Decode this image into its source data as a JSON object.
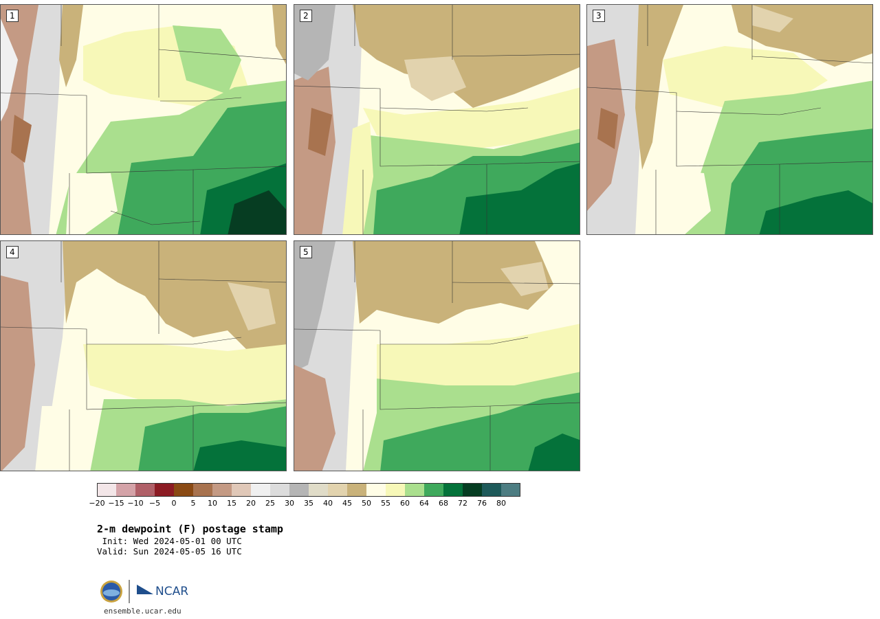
{
  "panels": [
    {
      "label": "1"
    },
    {
      "label": "2"
    },
    {
      "label": "3"
    },
    {
      "label": "4"
    },
    {
      "label": "5"
    }
  ],
  "colorbar": {
    "ticks": [
      "−20",
      "−15",
      "−10",
      "−5",
      "0",
      "5",
      "10",
      "15",
      "20",
      "25",
      "30",
      "35",
      "40",
      "45",
      "50",
      "55",
      "60",
      "64",
      "68",
      "72",
      "76",
      "80"
    ],
    "colors": [
      "#f3e6e8",
      "#d4a3a8",
      "#b06068",
      "#8c1c24",
      "#8a4a14",
      "#a8734f",
      "#c49a84",
      "#e0c8b8",
      "#f0f0f0",
      "#dcdcdc",
      "#b5b5b5",
      "#e0dcc8",
      "#e2d3ae",
      "#c9b27a",
      "#fffde6",
      "#f7f8b8",
      "#aadf8e",
      "#3fa95c",
      "#04723a",
      "#063d22",
      "#1e5a5a",
      "#4d7d82"
    ]
  },
  "title": "2-m dewpoint (F) postage stamp",
  "init": " Init: Wed 2024-05-01 00 UTC",
  "valid": "Valid: Sun 2024-05-05 16 UTC",
  "logos": {
    "nsf": "NSF",
    "ncar": "NCAR"
  },
  "url": "ensemble.ucar.edu"
}
